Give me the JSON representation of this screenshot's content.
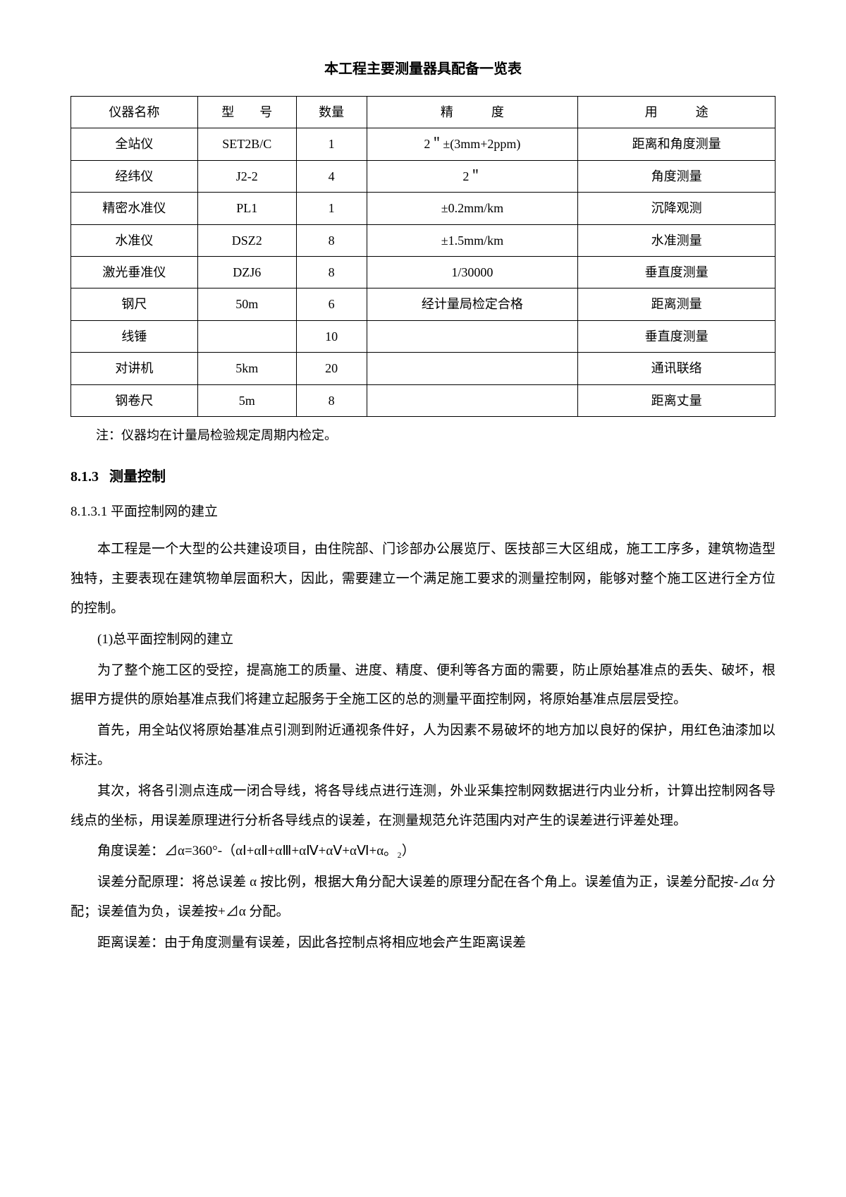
{
  "table": {
    "title": "本工程主要测量器具配备一览表",
    "headers": [
      "仪器名称",
      "型　　号",
      "数量",
      "精　　　度",
      "用　　　途"
    ],
    "rows": [
      [
        "全站仪",
        "SET2B/C",
        "1",
        "2＂±(3mm+2ppm)",
        "距离和角度测量"
      ],
      [
        "经纬仪",
        "J2-2",
        "4",
        "2＂",
        "角度测量"
      ],
      [
        "精密水准仪",
        "PL1",
        "1",
        "±0.2mm/km",
        "沉降观测"
      ],
      [
        "水准仪",
        "DSZ2",
        "8",
        "±1.5mm/km",
        "水准测量"
      ],
      [
        "激光垂准仪",
        "DZJ6",
        "8",
        "1/30000",
        "垂直度测量"
      ],
      [
        "钢尺",
        "50m",
        "6",
        "经计量局检定合格",
        "距离测量"
      ],
      [
        "线锤",
        "",
        "10",
        "",
        "垂直度测量"
      ],
      [
        "对讲机",
        "5km",
        "20",
        "",
        "通讯联络"
      ],
      [
        "钢卷尺",
        "5m",
        "8",
        "",
        "距离丈量"
      ]
    ],
    "note": "注：仪器均在计量局检验规定周期内检定。"
  },
  "section": {
    "number": "8.1.3",
    "title": "测量控制"
  },
  "subheading": "8.1.3.1 平面控制网的建立",
  "paragraphs": {
    "p1": "本工程是一个大型的公共建设项目，由住院部、门诊部办公展览厅、医技部三大区组成，施工工序多，建筑物造型独特，主要表现在建筑物单层面积大，因此，需要建立一个满足施工要求的测量控制网，能够对整个施工区进行全方位的控制。",
    "p2": "(1)总平面控制网的建立",
    "p3": "为了整个施工区的受控，提高施工的质量、进度、精度、便利等各方面的需要，防止原始基准点的丢失、破坏，根据甲方提供的原始基准点我们将建立起服务于全施工区的总的测量平面控制网，将原始基准点层层受控。",
    "p4": "首先，用全站仪将原始基准点引测到附近通视条件好，人为因素不易破坏的地方加以良好的保护，用红色油漆加以标注。",
    "p5": "其次，将各引测点连成一闭合导线，将各导线点进行连测，外业采集控制网数据进行内业分析，计算出控制网各导线点的坐标，用误差原理进行分析各导线点的误差，在测量规范允许范围内对产生的误差进行评差处理。",
    "formula": "角度误差：⊿α=360°-（αⅠ+αⅡ+αⅢ+αⅣ+αⅤ+αⅥ+α。₂）",
    "p6": "误差分配原理：将总误差 α 按比例，根据大角分配大误差的原理分配在各个角上。误差值为正，误差分配按-⊿α 分配；误差值为负，误差按+⊿α 分配。",
    "p7": "距离误差：由于角度测量有误差，因此各控制点将相应地会产生距离误差"
  }
}
